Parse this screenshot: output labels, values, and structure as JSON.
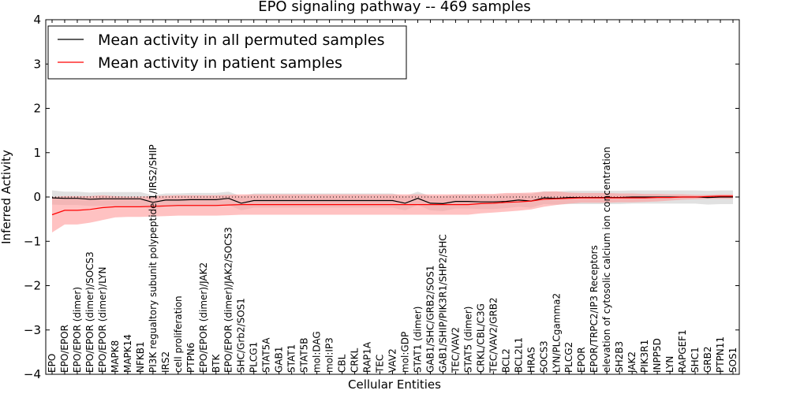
{
  "chart_data": {
    "type": "line",
    "title": "EPO signaling pathway -- 469 samples",
    "xlabel": "Cellular Entities",
    "ylabel": "Inferred Activity",
    "ylim": [
      -4,
      4
    ],
    "yticks": [
      -4,
      -3,
      -2,
      -1,
      0,
      1,
      2,
      3,
      4
    ],
    "ytick_labels": [
      "−4",
      "−3",
      "−2",
      "−1",
      "0",
      "1",
      "2",
      "3",
      "4"
    ],
    "legend_position": "top-left",
    "categories": [
      "EPO",
      "EPO/EPOR",
      "EPO/EPOR (dimer)",
      "EPO/EPOR (dimer)/SOCS3",
      "EPO/EPOR (dimer)/LYN",
      "MAPK8",
      "MAPK14",
      "NFKB1",
      "PI3K regualtory subunit polypeptide 1/IRS2/SHIP",
      "IRS2",
      "cell proliferation",
      "PTPN6",
      "EPO/EPOR (dimer)/JAK2",
      "BTK",
      "EPO/EPOR (dimer)/JAK2/SOCS3",
      "SHC/Grb2/SOS1",
      "PLCG1",
      "STAT5A",
      "GAB1",
      "STAT1",
      "STAT5B",
      "mol:DAG",
      "mol:IP3",
      "CBL",
      "CRKL",
      "RAP1A",
      "TEC",
      "VAV2",
      "mol:GDP",
      "STAT1 (dimer)",
      "GAB1/SHC/GRB2/SOS1",
      "GAB1/SHIP/PIK3R1/SHP2/SHC",
      "TEC/VAV2",
      "STAT5 (dimer)",
      "CRKL/CBL/C3G",
      "TEC/VAV2/GRB2",
      "BCL2",
      "BCL2L1",
      "HRAS",
      "SOCS3",
      "LYN/PLCgamma2",
      "PLCG2",
      "EPOR",
      "EPOR/TRPC2/IP3 Receptors",
      "elevation of cytosolic calcium ion concentration",
      "SH2B3",
      "JAK2",
      "PIK3R1",
      "INPP5D",
      "LYN",
      "RAPGEF1",
      "SHC1",
      "GRB2",
      "PTPN11",
      "SOS1"
    ],
    "series": [
      {
        "name": "Mean activity in all permuted samples",
        "color": "#000000",
        "band_color": "#c8c8c8",
        "values": [
          -0.02,
          -0.03,
          -0.03,
          -0.05,
          -0.04,
          -0.04,
          -0.04,
          -0.04,
          -0.12,
          -0.07,
          -0.07,
          -0.06,
          -0.06,
          -0.06,
          -0.03,
          -0.14,
          -0.08,
          -0.08,
          -0.08,
          -0.08,
          -0.08,
          -0.08,
          -0.08,
          -0.08,
          -0.08,
          -0.08,
          -0.08,
          -0.08,
          -0.14,
          -0.03,
          -0.14,
          -0.15,
          -0.1,
          -0.1,
          -0.11,
          -0.11,
          -0.1,
          -0.07,
          -0.09,
          -0.02,
          -0.03,
          -0.01,
          -0.01,
          -0.01,
          -0.01,
          -0.01,
          0.0,
          0.0,
          0.0,
          0.0,
          0.0,
          0.0,
          -0.01,
          0.0,
          0.0
        ],
        "band_low": [
          -0.17,
          -0.18,
          -0.18,
          -0.2,
          -0.2,
          -0.2,
          -0.2,
          -0.2,
          -0.28,
          -0.22,
          -0.22,
          -0.22,
          -0.22,
          -0.22,
          -0.18,
          -0.3,
          -0.24,
          -0.24,
          -0.24,
          -0.24,
          -0.24,
          -0.24,
          -0.24,
          -0.24,
          -0.24,
          -0.24,
          -0.24,
          -0.24,
          -0.3,
          -0.18,
          -0.3,
          -0.32,
          -0.26,
          -0.26,
          -0.27,
          -0.27,
          -0.25,
          -0.22,
          -0.24,
          -0.16,
          -0.17,
          -0.16,
          -0.16,
          -0.16,
          -0.16,
          -0.16,
          -0.15,
          -0.15,
          -0.15,
          -0.15,
          -0.15,
          -0.15,
          -0.17,
          -0.16,
          -0.16
        ],
        "band_high": [
          0.15,
          0.12,
          0.12,
          0.1,
          0.11,
          0.11,
          0.11,
          0.11,
          0.04,
          0.08,
          0.08,
          0.09,
          0.09,
          0.09,
          0.12,
          0.02,
          0.08,
          0.08,
          0.08,
          0.08,
          0.08,
          0.08,
          0.08,
          0.08,
          0.08,
          0.08,
          0.08,
          0.08,
          0.02,
          0.12,
          0.02,
          0.02,
          0.06,
          0.06,
          0.05,
          0.05,
          0.06,
          0.08,
          0.07,
          0.13,
          0.12,
          0.14,
          0.14,
          0.14,
          0.14,
          0.14,
          0.15,
          0.15,
          0.15,
          0.15,
          0.15,
          0.15,
          0.14,
          0.15,
          0.15
        ]
      },
      {
        "name": "Mean activity in patient samples",
        "color": "#ff0000",
        "band_color": "#ff9999",
        "values": [
          -0.4,
          -0.3,
          -0.3,
          -0.28,
          -0.24,
          -0.22,
          -0.22,
          -0.22,
          -0.21,
          -0.2,
          -0.19,
          -0.19,
          -0.19,
          -0.19,
          -0.18,
          -0.17,
          -0.17,
          -0.17,
          -0.17,
          -0.17,
          -0.17,
          -0.17,
          -0.17,
          -0.17,
          -0.17,
          -0.17,
          -0.17,
          -0.17,
          -0.17,
          -0.17,
          -0.17,
          -0.17,
          -0.17,
          -0.17,
          -0.15,
          -0.14,
          -0.12,
          -0.11,
          -0.09,
          -0.05,
          -0.04,
          -0.03,
          -0.02,
          -0.02,
          -0.02,
          -0.02,
          -0.02,
          -0.02,
          -0.01,
          -0.01,
          0.0,
          0.0,
          0.01,
          0.02,
          0.02
        ],
        "band_low": [
          -0.8,
          -0.62,
          -0.62,
          -0.58,
          -0.52,
          -0.46,
          -0.45,
          -0.45,
          -0.44,
          -0.43,
          -0.42,
          -0.42,
          -0.42,
          -0.42,
          -0.41,
          -0.4,
          -0.4,
          -0.4,
          -0.4,
          -0.4,
          -0.4,
          -0.4,
          -0.4,
          -0.4,
          -0.4,
          -0.4,
          -0.4,
          -0.4,
          -0.4,
          -0.4,
          -0.4,
          -0.4,
          -0.4,
          -0.4,
          -0.37,
          -0.35,
          -0.33,
          -0.31,
          -0.28,
          -0.22,
          -0.18,
          -0.15,
          -0.13,
          -0.13,
          -0.13,
          -0.12,
          -0.12,
          -0.11,
          -0.1,
          -0.08,
          -0.06,
          -0.05,
          -0.04,
          -0.04,
          -0.04
        ],
        "band_high": [
          0.0,
          0.02,
          0.02,
          0.02,
          0.04,
          0.02,
          0.01,
          0.01,
          0.02,
          0.03,
          0.04,
          0.04,
          0.04,
          0.04,
          0.05,
          0.06,
          0.06,
          0.06,
          0.06,
          0.06,
          0.06,
          0.06,
          0.06,
          0.06,
          0.06,
          0.06,
          0.06,
          0.06,
          0.06,
          0.06,
          0.06,
          0.06,
          0.06,
          0.06,
          0.07,
          0.07,
          0.09,
          0.09,
          0.1,
          0.12,
          0.13,
          0.1,
          0.09,
          0.09,
          0.09,
          0.08,
          0.08,
          0.07,
          0.07,
          0.06,
          0.06,
          0.05,
          0.05,
          0.06,
          0.06
        ]
      }
    ],
    "reference_line": {
      "y": 0,
      "style": "dotted",
      "color": "#000000"
    }
  }
}
